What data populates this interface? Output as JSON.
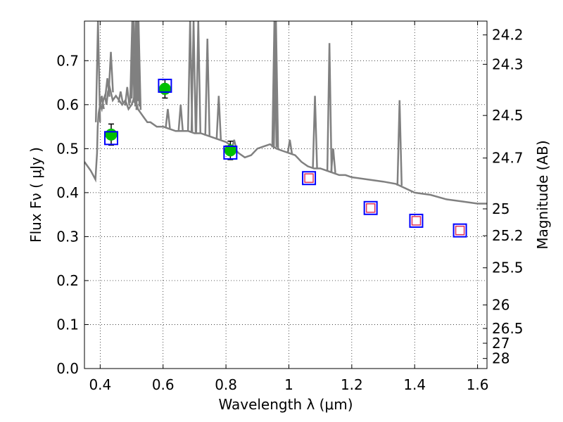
{
  "chart_data": {
    "type": "scatter",
    "title": "",
    "xlabel": "Wavelength  λ (μm)",
    "ylabel": "Flux  Fν  ( μJy )",
    "ylabel_right": "Magnitude (AB)",
    "xlim": [
      0.35,
      1.63
    ],
    "ylim": [
      0.0,
      0.79
    ],
    "grid": true,
    "grid_style": "dotted",
    "x_ticks": [
      {
        "value": 0.4,
        "label": "0.4"
      },
      {
        "value": 0.6,
        "label": "0.6"
      },
      {
        "value": 0.8,
        "label": "0.8"
      },
      {
        "value": 1.0,
        "label": "1"
      },
      {
        "value": 1.2,
        "label": "1.2"
      },
      {
        "value": 1.4,
        "label": "1.4"
      },
      {
        "value": 1.6,
        "label": "1.6"
      }
    ],
    "y_ticks": [
      {
        "value": 0.0,
        "label": "0.0"
      },
      {
        "value": 0.1,
        "label": "0.1"
      },
      {
        "value": 0.2,
        "label": "0.2"
      },
      {
        "value": 0.3,
        "label": "0.3"
      },
      {
        "value": 0.4,
        "label": "0.4"
      },
      {
        "value": 0.5,
        "label": "0.5"
      },
      {
        "value": 0.6,
        "label": "0.6"
      },
      {
        "value": 0.7,
        "label": "0.7"
      }
    ],
    "mag_ticks": [
      {
        "value": 24.2,
        "label": "24.2"
      },
      {
        "value": 24.3,
        "label": "24.3"
      },
      {
        "value": 24.5,
        "label": "24.5"
      },
      {
        "value": 24.7,
        "label": "24.7"
      },
      {
        "value": 25.0,
        "label": "25"
      },
      {
        "value": 25.2,
        "label": "25.2"
      },
      {
        "value": 25.5,
        "label": "25.5"
      },
      {
        "value": 26.0,
        "label": "26"
      },
      {
        "value": 26.5,
        "label": "26.5"
      },
      {
        "value": 27.0,
        "label": "27"
      },
      {
        "value": 28.0,
        "label": "28"
      }
    ],
    "series": [
      {
        "style": "line",
        "color": "#808080",
        "x": [
          0.35,
          0.37,
          0.385,
          0.39,
          0.392,
          0.395,
          0.4,
          0.405,
          0.41,
          0.415,
          0.42,
          0.425,
          0.43,
          0.44,
          0.45,
          0.46,
          0.47,
          0.48,
          0.49,
          0.5,
          0.51,
          0.52,
          0.53,
          0.54,
          0.55,
          0.56,
          0.58,
          0.6,
          0.62,
          0.64,
          0.66,
          0.68,
          0.7,
          0.72,
          0.74,
          0.76,
          0.78,
          0.8,
          0.82,
          0.84,
          0.86,
          0.88,
          0.9,
          0.92,
          0.94,
          0.96,
          0.98,
          1.0,
          1.02,
          1.04,
          1.06,
          1.08,
          1.1,
          1.12,
          1.14,
          1.16,
          1.18,
          1.2,
          1.25,
          1.3,
          1.34,
          1.37,
          1.4,
          1.45,
          1.5,
          1.55,
          1.6,
          1.63
        ],
        "y": [
          0.47,
          0.45,
          0.43,
          0.49,
          0.55,
          0.58,
          0.6,
          0.59,
          0.61,
          0.62,
          0.6,
          0.63,
          0.64,
          0.61,
          0.62,
          0.61,
          0.6,
          0.61,
          0.59,
          0.6,
          0.62,
          0.59,
          0.58,
          0.57,
          0.56,
          0.56,
          0.55,
          0.55,
          0.545,
          0.54,
          0.54,
          0.54,
          0.535,
          0.535,
          0.53,
          0.525,
          0.52,
          0.515,
          0.505,
          0.49,
          0.48,
          0.485,
          0.5,
          0.505,
          0.51,
          0.5,
          0.495,
          0.49,
          0.485,
          0.47,
          0.46,
          0.455,
          0.455,
          0.45,
          0.445,
          0.44,
          0.44,
          0.435,
          0.43,
          0.425,
          0.42,
          0.41,
          0.4,
          0.395,
          0.385,
          0.38,
          0.375,
          0.375
        ]
      },
      {
        "style": "spikes",
        "color": "#808080",
        "x": [
          0.393,
          0.405,
          0.423,
          0.434,
          0.465,
          0.486,
          0.502,
          0.507,
          0.514,
          0.518,
          0.522,
          0.615,
          0.656,
          0.686,
          0.697,
          0.712,
          0.741,
          0.777,
          0.826,
          0.954,
          0.959,
          1.003,
          1.083,
          1.129,
          1.141,
          1.352
        ],
        "y": [
          0.79,
          0.62,
          0.66,
          0.72,
          0.63,
          0.64,
          0.79,
          0.79,
          0.79,
          0.79,
          0.79,
          0.59,
          0.6,
          0.79,
          0.79,
          0.79,
          0.75,
          0.62,
          0.52,
          0.79,
          0.79,
          0.52,
          0.62,
          0.74,
          0.5,
          0.61
        ]
      },
      {
        "name": "",
        "style": "circle",
        "color": "#00c000",
        "x": [
          0.435,
          0.606,
          0.814
        ],
        "y": [
          0.532,
          0.636,
          0.496
        ],
        "yerr": [
          0.024,
          0.021,
          0.021
        ]
      },
      {
        "name": "",
        "style": "square",
        "color": "#0000ff",
        "x": [
          0.435,
          0.606,
          0.814,
          1.064,
          1.26,
          1.405,
          1.544
        ],
        "y": [
          0.524,
          0.643,
          0.491,
          0.433,
          0.365,
          0.336,
          0.314
        ]
      },
      {
        "name": "",
        "style": "square-small",
        "color": "#e0305a",
        "x": [
          1.064,
          1.26,
          1.405,
          1.544
        ],
        "y": [
          0.433,
          0.365,
          0.336,
          0.314
        ]
      }
    ]
  }
}
